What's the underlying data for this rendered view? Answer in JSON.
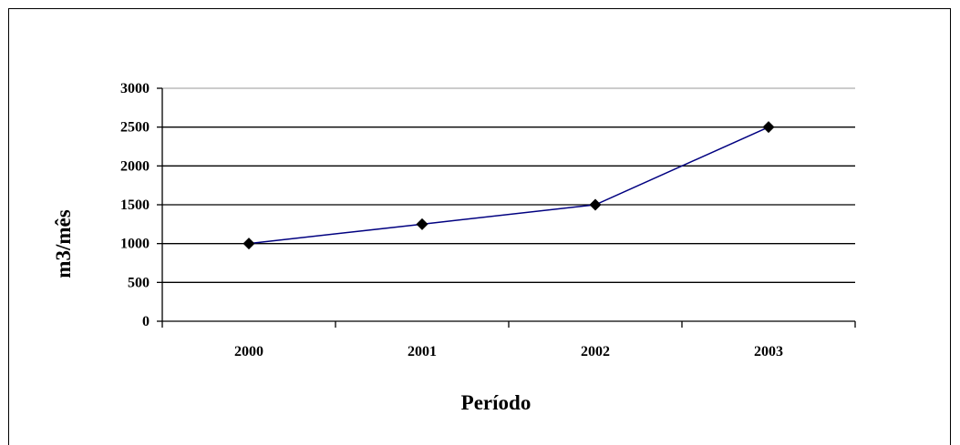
{
  "chart_data": {
    "type": "line",
    "title": "",
    "xlabel": "Período",
    "ylabel": "m3/mês",
    "categories": [
      "2000",
      "2001",
      "2002",
      "2003"
    ],
    "series": [
      {
        "values": [
          1000,
          1250,
          1500,
          2500
        ]
      }
    ],
    "ylim": [
      0,
      3000
    ],
    "yticks": [
      0,
      500,
      1000,
      1500,
      2000,
      2500,
      3000
    ],
    "grid": true,
    "legend": "none",
    "marker": "diamond",
    "colors": {
      "line": "#000080",
      "marker": "#000000",
      "grid": "#000000",
      "axis": "#000000"
    }
  }
}
